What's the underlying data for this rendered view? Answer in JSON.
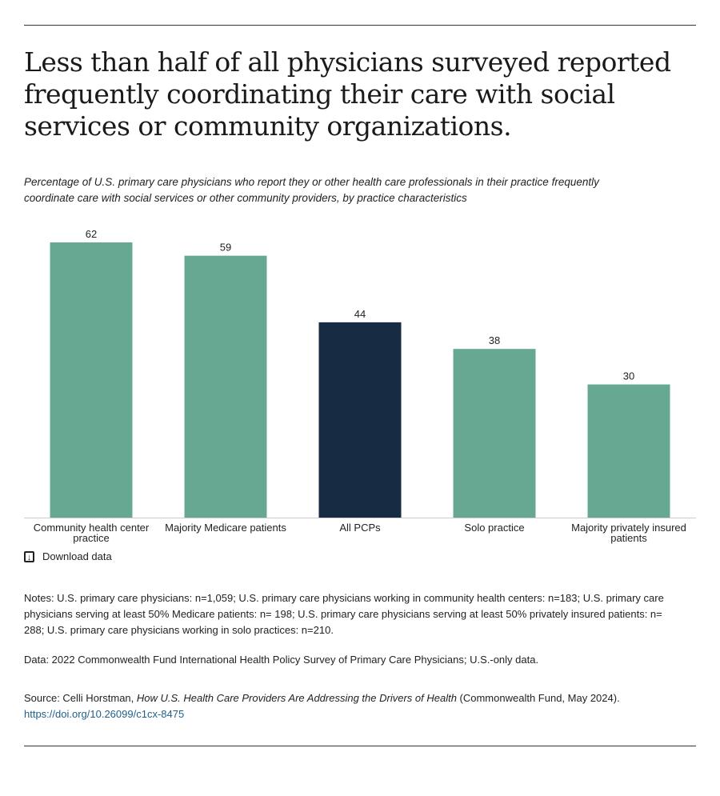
{
  "title": "Less than half of all physicians surveyed reported frequently coordinating their care with social services or community organizations.",
  "subtitle": "Percentage of U.S. primary care physicians who report they or other health care professionals in their practice frequently coordinate care with social services or other community providers, by practice characteristics",
  "download_label": "Download data",
  "notes": "Notes: U.S. primary care physicians: n=1,059; U.S. primary care physicians working in community health centers: n=183; U.S. primary care physicians serving at least 50% Medicare patients: n= 198; U.S. primary care physicians serving at least 50% privately insured patients: n= 288; U.S. primary care physicians working in solo practices: n=210.",
  "data_note": "Data: 2022 Commonwealth Fund International Health Policy Survey of Primary Care Physicians; U.S.-only data.",
  "source": {
    "prefix": "Source: Celli Horstman, ",
    "title": "How U.S. Health Care Providers Are Addressing the Drivers of Health",
    "suffix": " (Commonwealth Fund, May 2024). ",
    "link": "https://doi.org/10.26099/c1cx-8475"
  },
  "colors": {
    "default": "#67a892",
    "highlight": "#172b42",
    "link": "#1f5f8b"
  },
  "chart_data": {
    "type": "bar",
    "categories": [
      [
        "Community health center",
        "practice"
      ],
      [
        "Majority Medicare patients"
      ],
      [
        "All PCPs"
      ],
      [
        "Solo practice"
      ],
      [
        "Majority privately insured",
        "patients"
      ]
    ],
    "values": [
      62,
      59,
      44,
      38,
      30
    ],
    "highlight_index": 2,
    "ylim": [
      0,
      62
    ],
    "grid": false,
    "data_labels": true
  }
}
